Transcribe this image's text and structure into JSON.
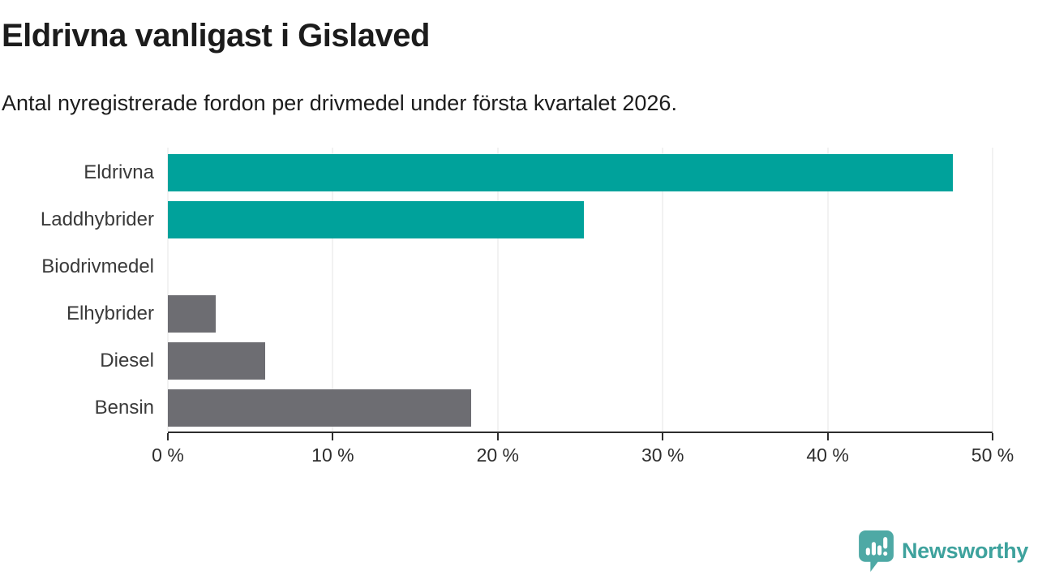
{
  "chart_data": {
    "type": "bar",
    "orientation": "horizontal",
    "title": "Eldrivna vanligast i Gislaved",
    "subtitle": "Antal nyregistrerade fordon per drivmedel under första kvartalet 2026.",
    "categories": [
      "Eldrivna",
      "Laddhybrider",
      "Biodrivmedel",
      "Elhybrider",
      "Diesel",
      "Bensin"
    ],
    "values": [
      47.6,
      25.2,
      0,
      2.9,
      5.9,
      18.4
    ],
    "unit": "%",
    "xlim": [
      0,
      50
    ],
    "x_ticks": [
      0,
      10,
      20,
      30,
      40,
      50
    ],
    "x_tick_labels": [
      "0 %",
      "10 %",
      "20 %",
      "30 %",
      "40 %",
      "50 %"
    ],
    "bar_colors": [
      "#00A29B",
      "#00A29B",
      "#6D6D72",
      "#6D6D72",
      "#6D6D72",
      "#6D6D72"
    ],
    "highlight_color": "#00A29B",
    "base_color": "#6D6D72",
    "gridline_color": "#E4E4E4",
    "axis_color": "#2D2D2D",
    "grid": true,
    "legend": false,
    "value_labels": false
  },
  "footer": {
    "logo_text": "Newsworthy",
    "logo_text_color": "#3EA29D",
    "logo_icon": "newsworthy-speech-bubble-bar-chart-icon",
    "logo_icon_color": "#4EA9A5"
  }
}
